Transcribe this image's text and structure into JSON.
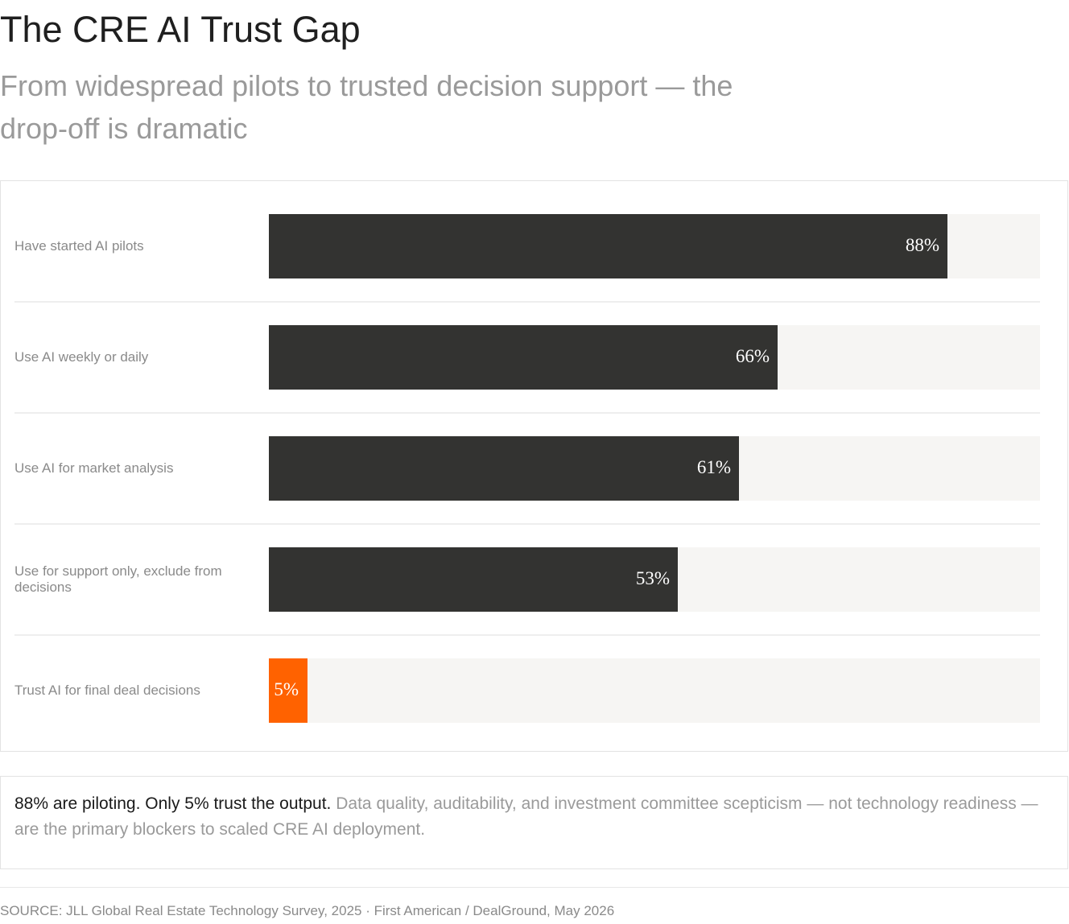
{
  "title": "The CRE AI Trust Gap",
  "subtitle": "From widespread pilots to trusted decision support — the drop-off is dramatic",
  "colors": {
    "bar": "#333331",
    "highlight": "#ff6200",
    "track": "#f6f5f3"
  },
  "chart_data": {
    "type": "bar",
    "orientation": "horizontal",
    "categories": [
      "Have started AI pilots",
      "Use AI weekly or daily",
      "Use AI for market analysis",
      "Use for support only, exclude from decisions",
      "Trust AI for final deal decisions"
    ],
    "values": [
      88,
      66,
      61,
      53,
      5
    ],
    "value_labels": [
      "88%",
      "66%",
      "61%",
      "53%",
      "5%"
    ],
    "unit": "%",
    "xlim": [
      0,
      100
    ],
    "highlight_index": 4,
    "grid": false,
    "legend": "none"
  },
  "callout": {
    "strong": "88% are piloting. Only 5% trust the output.",
    "rest": "Data quality, auditability, and investment committee scepticism — not technology readiness — are the primary blockers to scaled CRE AI deployment."
  },
  "source": "SOURCE: JLL Global Real Estate Technology Survey, 2025 · First American / DealGround, May 2026"
}
